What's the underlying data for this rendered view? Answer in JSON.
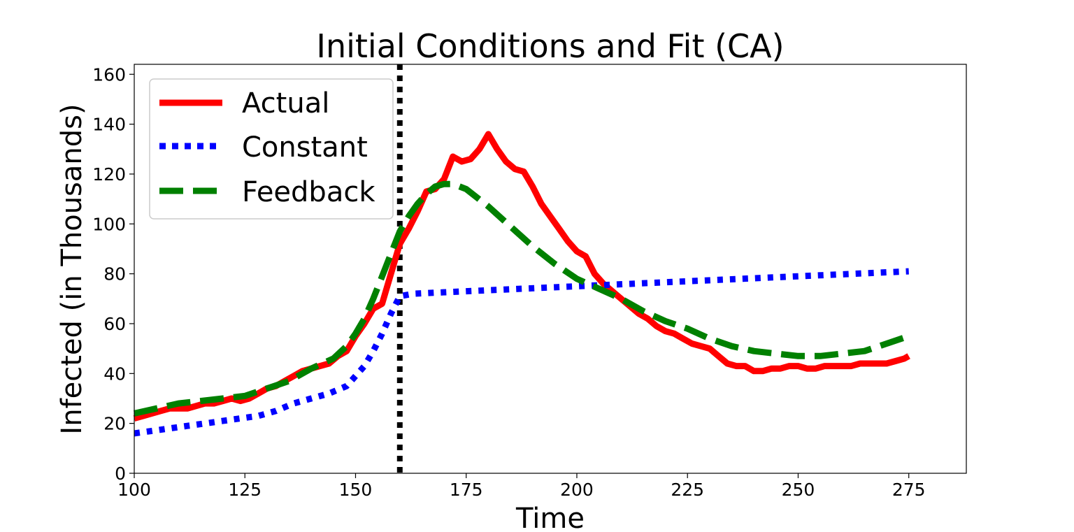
{
  "chart_data": {
    "type": "line",
    "title": "Initial Conditions and Fit (CA)",
    "xlabel": "Time",
    "ylabel": "Infected (in Thousands)",
    "xlim": [
      100,
      288
    ],
    "ylim": [
      0,
      164
    ],
    "xticks": [
      100,
      125,
      150,
      175,
      200,
      225,
      250,
      275
    ],
    "yticks": [
      0,
      20,
      40,
      60,
      80,
      100,
      120,
      140,
      160
    ],
    "grid": false,
    "legend_position": "top-left",
    "vline": {
      "x": 160,
      "color": "#000000",
      "style": "dotted"
    },
    "series": [
      {
        "name": "Actual",
        "color": "#ff0000",
        "style": "solid",
        "x": [
          100,
          102,
          104,
          106,
          108,
          110,
          112,
          114,
          116,
          118,
          120,
          122,
          124,
          126,
          128,
          130,
          132,
          134,
          136,
          138,
          140,
          142,
          144,
          146,
          148,
          150,
          152,
          154,
          156,
          158,
          160,
          162,
          164,
          166,
          168,
          170,
          172,
          174,
          176,
          178,
          180,
          182,
          184,
          186,
          188,
          190,
          192,
          194,
          196,
          198,
          200,
          202,
          204,
          206,
          208,
          210,
          212,
          214,
          216,
          218,
          220,
          222,
          224,
          226,
          228,
          230,
          232,
          234,
          236,
          238,
          240,
          242,
          244,
          246,
          248,
          250,
          252,
          254,
          256,
          258,
          260,
          262,
          264,
          266,
          268,
          270,
          272,
          274,
          275
        ],
        "y": [
          22,
          23,
          24,
          25,
          26,
          26,
          26,
          27,
          28,
          28,
          29,
          30,
          29,
          30,
          32,
          34,
          35,
          37,
          39,
          41,
          42,
          43,
          44,
          47,
          49,
          55,
          60,
          66,
          68,
          80,
          92,
          98,
          105,
          113,
          114,
          118,
          127,
          125,
          126,
          130,
          136,
          130,
          125,
          122,
          121,
          115,
          108,
          103,
          98,
          93,
          89,
          87,
          80,
          76,
          73,
          70,
          67,
          64,
          62,
          59,
          57,
          56,
          54,
          52,
          51,
          50,
          47,
          44,
          43,
          43,
          41,
          41,
          42,
          42,
          43,
          43,
          42,
          42,
          43,
          43,
          43,
          43,
          44,
          44,
          44,
          44,
          45,
          46,
          47
        ]
      },
      {
        "name": "Constant",
        "color": "#0000ff",
        "style": "dotted",
        "x": [
          100,
          104,
          108,
          112,
          116,
          120,
          124,
          128,
          132,
          136,
          140,
          144,
          148,
          152,
          154,
          156,
          158,
          160,
          163,
          175,
          200,
          225,
          250,
          275
        ],
        "y": [
          16,
          17,
          18,
          19,
          20,
          21,
          22,
          23,
          25,
          28,
          30,
          32,
          35,
          43,
          49,
          56,
          64,
          71,
          72,
          73,
          75,
          77,
          79,
          81
        ]
      },
      {
        "name": "Feedback",
        "color": "#008000",
        "style": "dashed",
        "x": [
          100,
          105,
          110,
          115,
          120,
          125,
          130,
          135,
          140,
          145,
          148,
          150,
          152,
          154,
          156,
          158,
          160,
          162,
          164,
          166,
          168,
          170,
          172,
          175,
          180,
          185,
          190,
          195,
          200,
          205,
          210,
          215,
          220,
          225,
          230,
          235,
          240,
          245,
          250,
          255,
          260,
          265,
          270,
          275
        ],
        "y": [
          24,
          26,
          28,
          29,
          30,
          31,
          34,
          37,
          42,
          46,
          51,
          56,
          62,
          70,
          79,
          88,
          97,
          103,
          108,
          112,
          115,
          116,
          116,
          114,
          107,
          99,
          91,
          84,
          78,
          74,
          70,
          65,
          61,
          58,
          54,
          51,
          49,
          48,
          47,
          47,
          48,
          49,
          52,
          55
        ]
      }
    ]
  }
}
